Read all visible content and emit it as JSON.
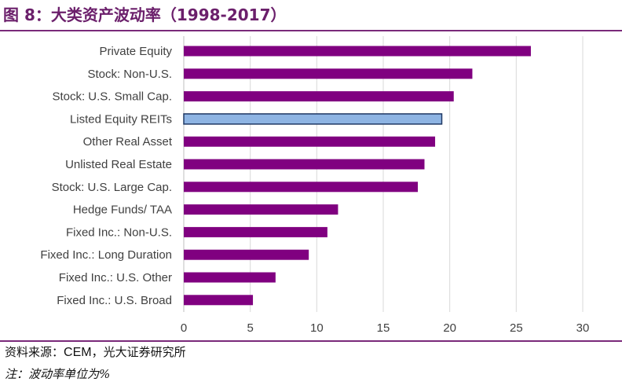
{
  "header": {
    "title": "图 8：大类资产波动率（1998-2017）"
  },
  "footer": {
    "source_prefix": "资料来源：",
    "source_org1": "CEM",
    "source_sep": "，",
    "source_org2": "光大证券研究所",
    "note": "注：波动率单位为%"
  },
  "colors": {
    "bar": "#800080",
    "highlight_bar": "#8eb4e3",
    "highlight_border": "#1f3864",
    "grid": "#d9d9d9",
    "axis": "#bfbfbf",
    "text": "#404040",
    "title": "#6b1f6b"
  },
  "chart_data": {
    "type": "bar",
    "orientation": "horizontal",
    "categories": [
      "Private Equity",
      "Stock: Non-U.S.",
      "Stock: U.S. Small Cap.",
      "Listed Equity REITs",
      "Other Real Asset",
      "Unlisted Real Estate",
      "Stock: U.S. Large Cap.",
      "Hedge Funds/ TAA",
      "Fixed Inc.: Non-U.S.",
      "Fixed Inc.: Long Duration",
      "Fixed Inc.: U.S. Other",
      "Fixed Inc.: U.S. Broad"
    ],
    "values": [
      26.1,
      21.7,
      20.3,
      19.4,
      18.9,
      18.1,
      17.6,
      11.6,
      10.8,
      9.4,
      6.9,
      5.2
    ],
    "highlight": "Listed Equity REITs",
    "xlim": [
      0,
      30
    ],
    "xticks": [
      "0",
      "5",
      "10",
      "15",
      "20",
      "25",
      "30"
    ],
    "grid": "vertical",
    "title": "",
    "xlabel": "",
    "ylabel": ""
  }
}
